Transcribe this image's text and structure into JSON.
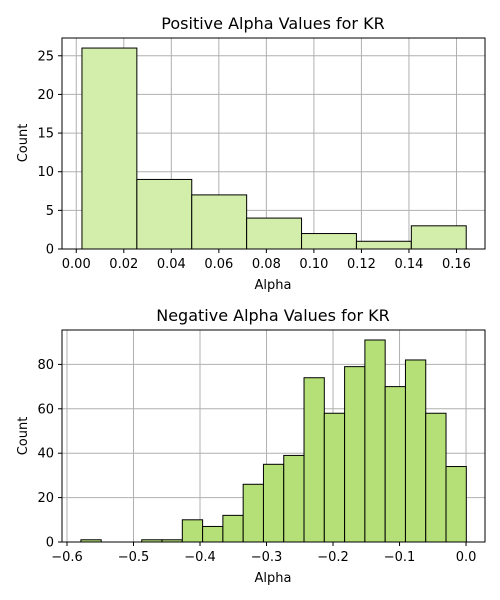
{
  "chart_data": [
    {
      "type": "bar",
      "title": "Positive Alpha Values for KR",
      "xlabel": "Alpha",
      "ylabel": "Count",
      "bar_color": "#d3edaa",
      "edge_color": "#000000",
      "grid": true,
      "xlim": [
        -0.006,
        0.172
      ],
      "ylim": [
        0,
        27.3
      ],
      "xticks": [
        0.0,
        0.02,
        0.04,
        0.06,
        0.08,
        0.1,
        0.12,
        0.14,
        0.16
      ],
      "xtick_labels": [
        "0.00",
        "0.02",
        "0.04",
        "0.06",
        "0.08",
        "0.10",
        "0.12",
        "0.14",
        "0.16"
      ],
      "yticks": [
        0,
        5,
        10,
        15,
        20,
        25
      ],
      "ytick_labels": [
        "0",
        "5",
        "10",
        "15",
        "20",
        "25"
      ],
      "bins": [
        {
          "x0": 0.0024,
          "x1": 0.0255,
          "count": 26
        },
        {
          "x0": 0.0255,
          "x1": 0.0486,
          "count": 9
        },
        {
          "x0": 0.0486,
          "x1": 0.0717,
          "count": 7
        },
        {
          "x0": 0.0717,
          "x1": 0.0948,
          "count": 4
        },
        {
          "x0": 0.0948,
          "x1": 0.1179,
          "count": 2
        },
        {
          "x0": 0.1179,
          "x1": 0.141,
          "count": 1
        },
        {
          "x0": 0.141,
          "x1": 0.1641,
          "count": 3
        }
      ]
    },
    {
      "type": "bar",
      "title": "Negative Alpha Values for KR",
      "xlabel": "Alpha",
      "ylabel": "Count",
      "bar_color": "#b5df77",
      "edge_color": "#000000",
      "grid": true,
      "xlim": [
        -0.6075,
        0.0285
      ],
      "ylim": [
        0,
        95.5
      ],
      "xticks": [
        -0.6,
        -0.5,
        -0.4,
        -0.3,
        -0.2,
        -0.1,
        0.0
      ],
      "xtick_labels": [
        "−0.6",
        "−0.5",
        "−0.4",
        "−0.3",
        "−0.2",
        "−0.1",
        "0.0"
      ],
      "yticks": [
        0,
        20,
        40,
        60,
        80
      ],
      "ytick_labels": [
        "0",
        "20",
        "40",
        "60",
        "80"
      ],
      "bins": [
        {
          "x0": -0.5791,
          "x1": -0.5486,
          "count": 1
        },
        {
          "x0": -0.5486,
          "x1": -0.5181,
          "count": 0
        },
        {
          "x0": -0.5181,
          "x1": -0.4876,
          "count": 0
        },
        {
          "x0": -0.4876,
          "x1": -0.4571,
          "count": 1
        },
        {
          "x0": -0.4571,
          "x1": -0.4266,
          "count": 1
        },
        {
          "x0": -0.4266,
          "x1": -0.3961,
          "count": 10
        },
        {
          "x0": -0.3961,
          "x1": -0.3656,
          "count": 7
        },
        {
          "x0": -0.3656,
          "x1": -0.3351,
          "count": 12
        },
        {
          "x0": -0.3351,
          "x1": -0.3046,
          "count": 26
        },
        {
          "x0": -0.3046,
          "x1": -0.2741,
          "count": 35
        },
        {
          "x0": -0.2741,
          "x1": -0.2436,
          "count": 39
        },
        {
          "x0": -0.2436,
          "x1": -0.2131,
          "count": 74
        },
        {
          "x0": -0.2131,
          "x1": -0.1826,
          "count": 58
        },
        {
          "x0": -0.1826,
          "x1": -0.1521,
          "count": 79
        },
        {
          "x0": -0.1521,
          "x1": -0.1216,
          "count": 91
        },
        {
          "x0": -0.1216,
          "x1": -0.0911,
          "count": 70
        },
        {
          "x0": -0.0911,
          "x1": -0.0606,
          "count": 82
        },
        {
          "x0": -0.0606,
          "x1": -0.0301,
          "count": 58
        },
        {
          "x0": -0.0301,
          "x1": 0.0004,
          "count": 34
        }
      ]
    }
  ]
}
